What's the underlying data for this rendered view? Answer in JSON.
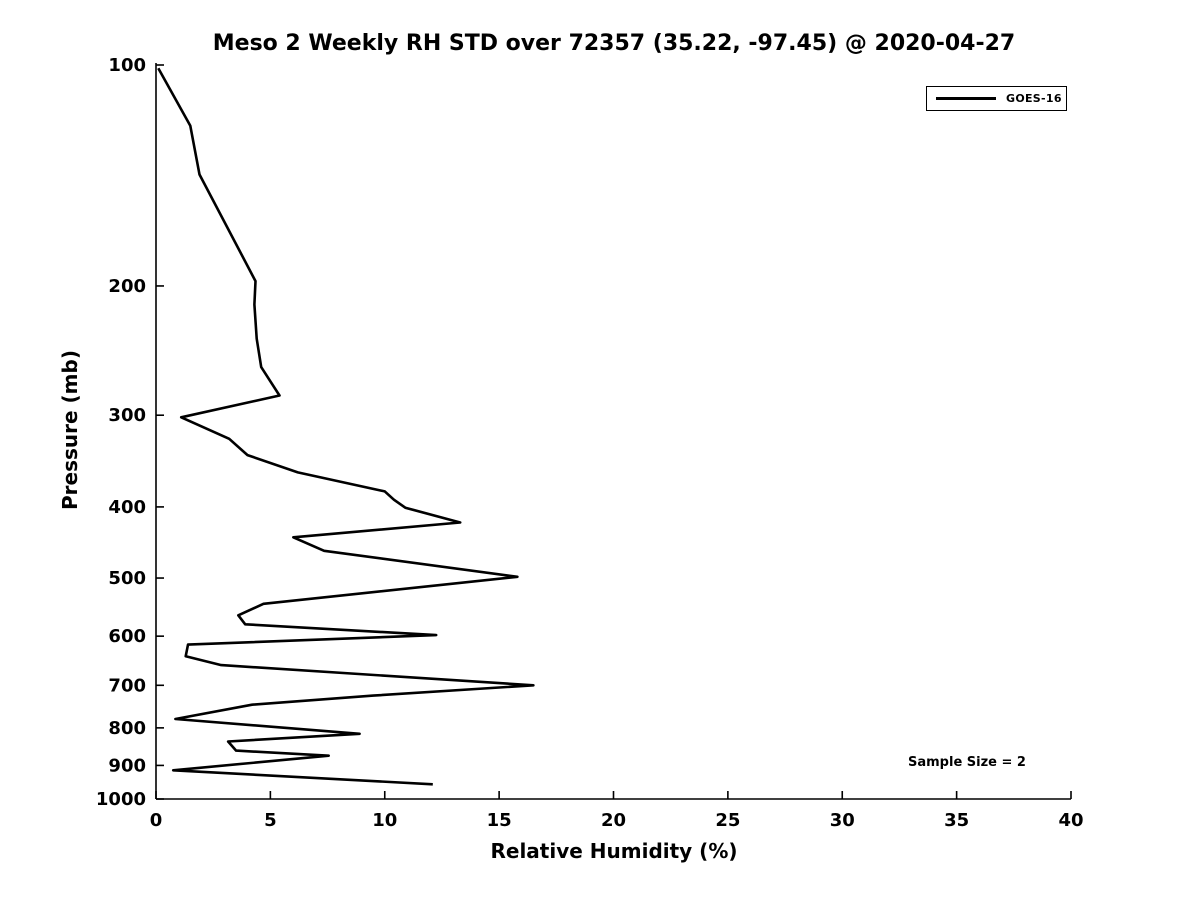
{
  "figure": {
    "title": "Meso 2 Weekly RH STD over 72357 (35.22, -97.45) @ 2020-04-27",
    "x_axis_label": "Relative Humidity (%)",
    "y_axis_label": "Pressure (mb)",
    "annotation": "Sample Size = 2",
    "legend": {
      "label": "GOES-16",
      "line_color": "#000000"
    },
    "axis_color": "#000000"
  },
  "chart_data": {
    "type": "line",
    "title": "Meso 2 Weekly RH STD over 72357 (35.22, -97.45) @ 2020-04-27",
    "xlabel": "Relative Humidity (%)",
    "ylabel": "Pressure (mb)",
    "xlim": [
      0,
      40
    ],
    "ylim": [
      100,
      1000
    ],
    "y_scale": "log",
    "y_axis_inverted": true,
    "x_ticks": [
      0,
      5,
      10,
      15,
      20,
      25,
      30,
      35,
      40
    ],
    "y_ticks": [
      100,
      200,
      300,
      400,
      500,
      600,
      700,
      800,
      900,
      1000
    ],
    "grid": false,
    "legend_position": "upper right",
    "annotations": [
      {
        "text": "Sample Size = 2",
        "x_rh_percent": 35.4,
        "y_pressure_mb": 905
      }
    ],
    "series": [
      {
        "name": "GOES-16",
        "color": "#000000",
        "line_width": 2.6,
        "pressure_mb": [
          101,
          121,
          141,
          197,
          212,
          236,
          258,
          282,
          302,
          323,
          340,
          359,
          381,
          391,
          401,
          420,
          440,
          459,
          498,
          542,
          562,
          578,
          598,
          616,
          639,
          657,
          700,
          723,
          744,
          778,
          815,
          835,
          859,
          873,
          914,
          955
        ],
        "rh_std_percent": [
          0.1,
          1.5,
          1.9,
          4.35,
          4.3,
          4.4,
          4.6,
          5.4,
          1.1,
          3.2,
          4.0,
          6.2,
          10.0,
          10.4,
          10.9,
          13.3,
          6.0,
          7.35,
          15.8,
          4.7,
          3.6,
          3.9,
          12.25,
          1.4,
          1.3,
          2.85,
          16.5,
          9.5,
          4.2,
          0.85,
          8.9,
          3.15,
          3.5,
          7.55,
          0.75,
          12.1
        ]
      }
    ]
  }
}
